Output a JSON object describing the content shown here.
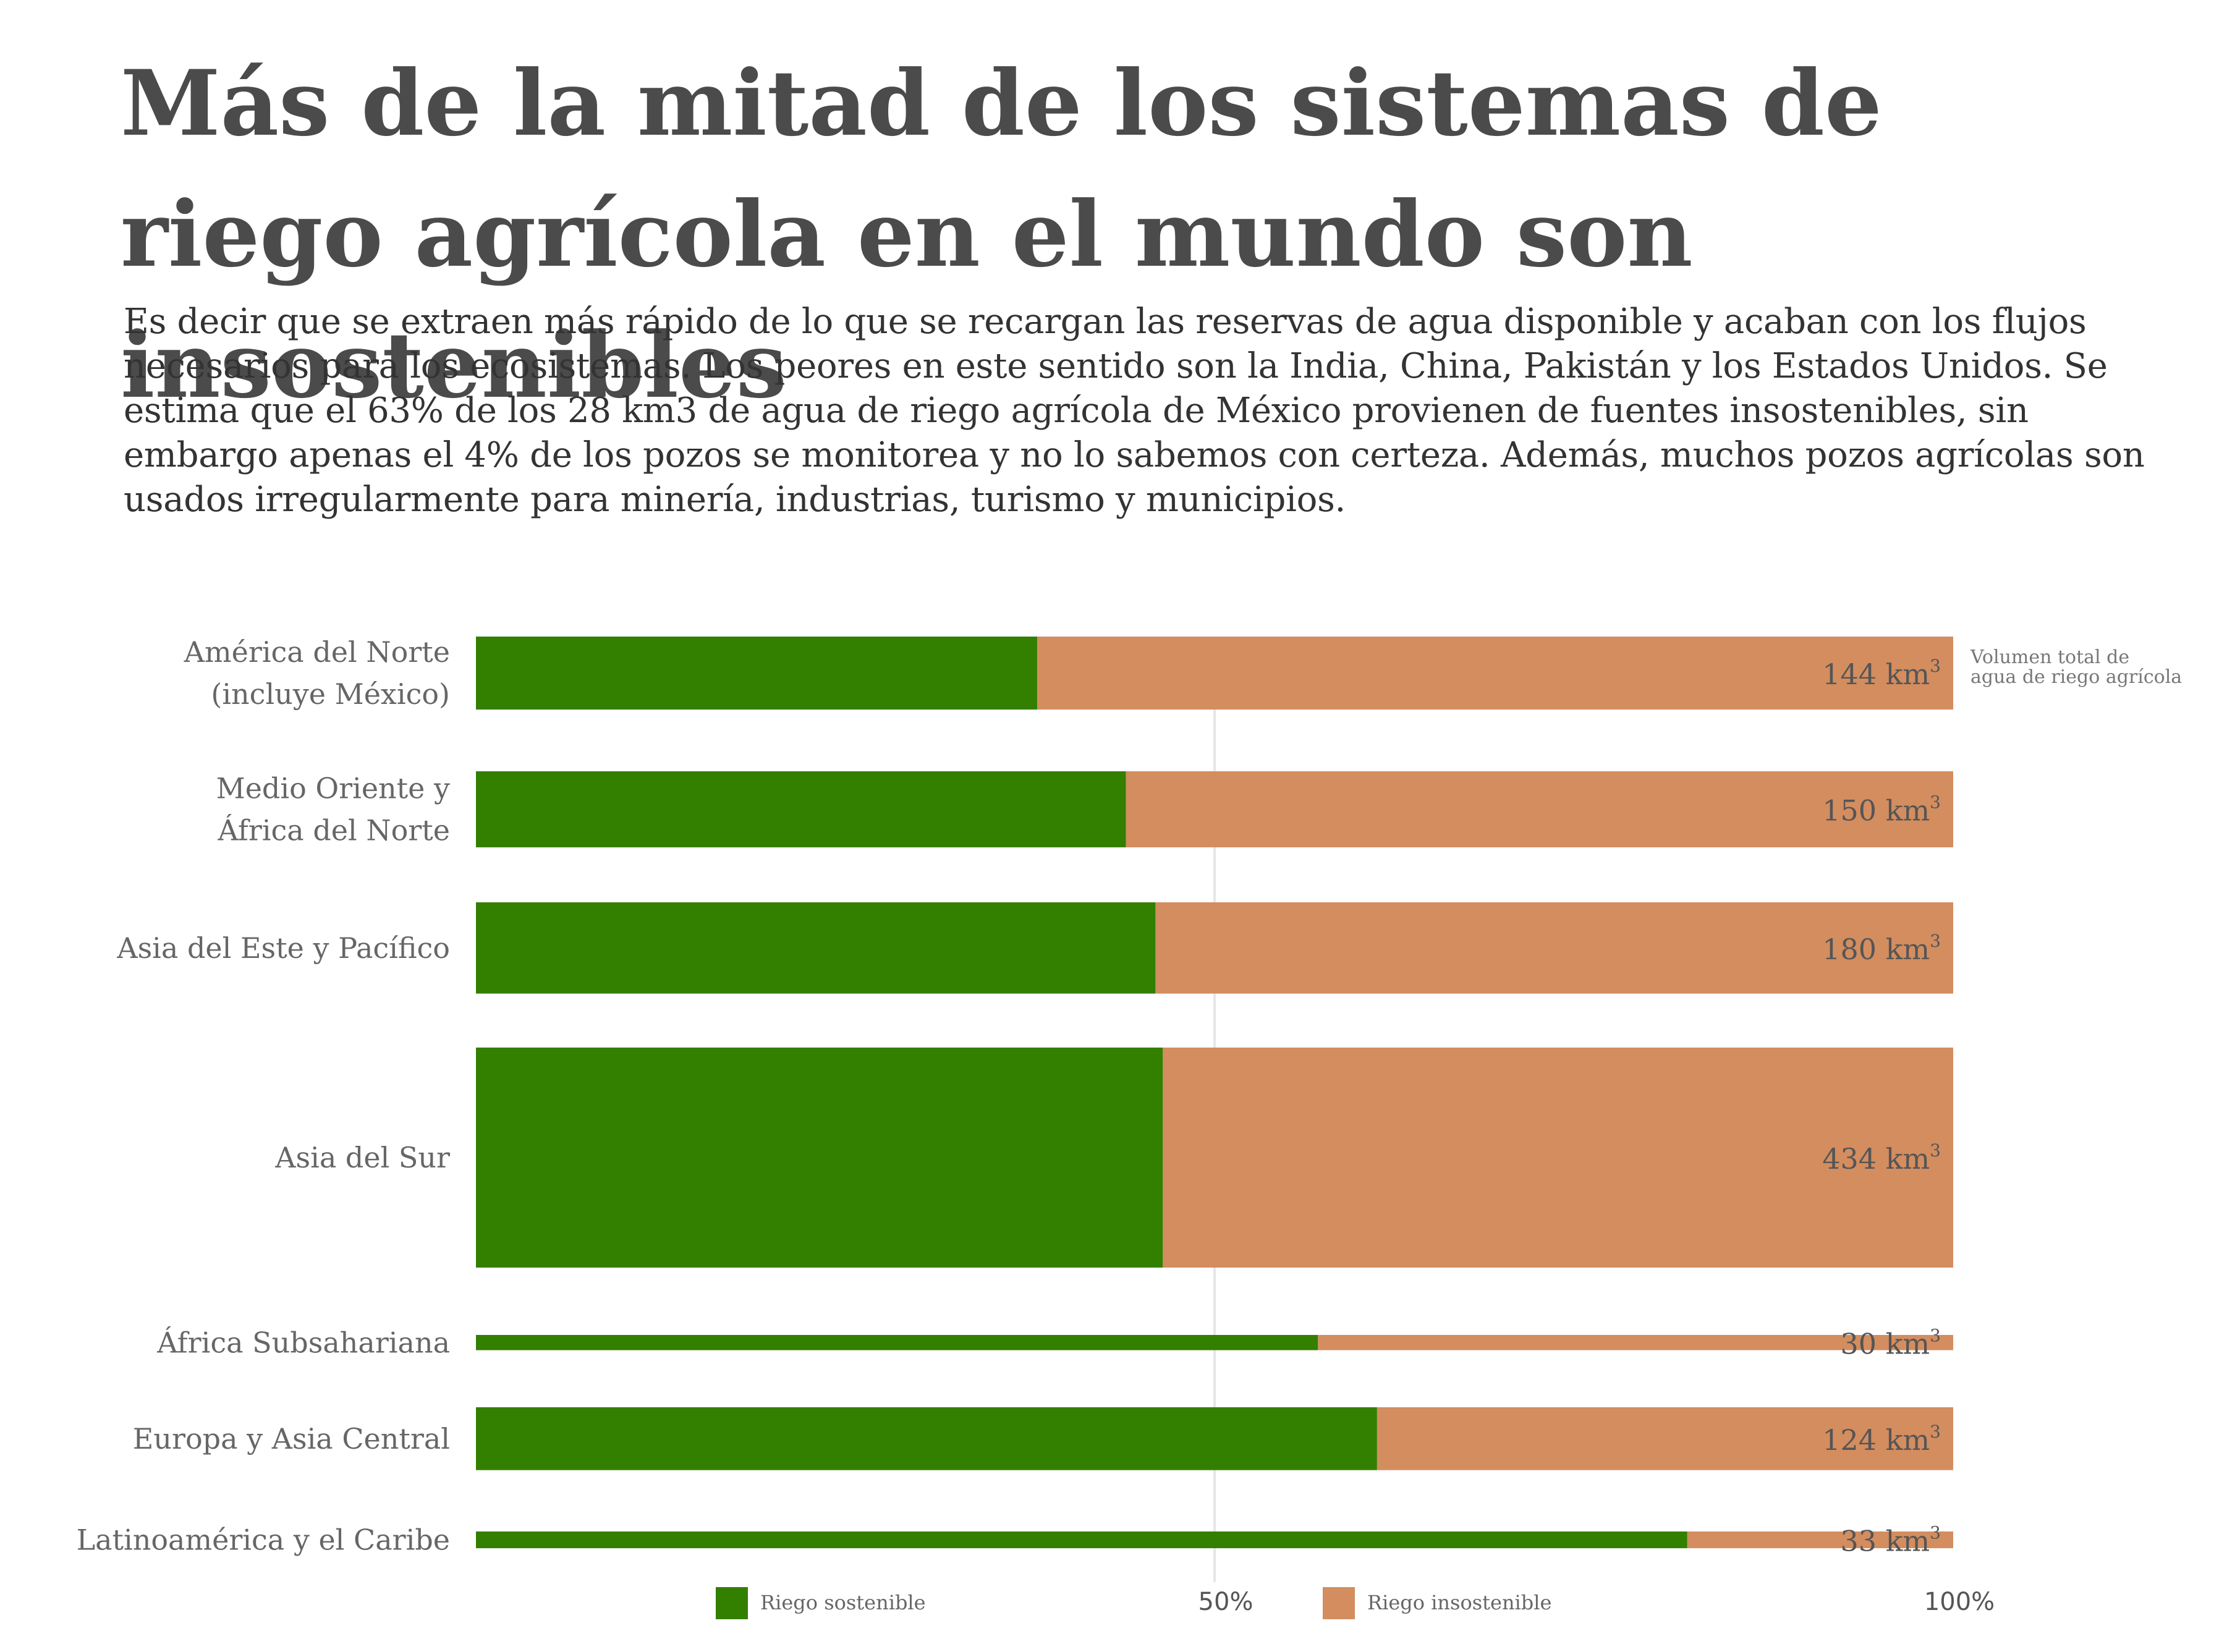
{
  "header": {
    "title": "Más de la mitad de los sistemas de riego agrícola en el mundo son insostenibles",
    "subtitle": "Es decir que se extraen más rápido de lo que se recargan las reservas de agua disponible y acaban con los flujos necesarios para los ecosistemas. Los peores en este sentido son la India, China, Pakistán y los Estados Unidos. Se estima que el 63% de los 28 km3 de agua de riego agrícola de México provienen de fuentes insostenibles, sin embargo apenas el 4% de los pozos se monitorea y no lo sabemos con certeza. Además, muchos pozos agrícolas son usados irregularmente para minería, industrias, turismo y municipios."
  },
  "colors": {
    "sustainable": "#337f00",
    "unsustainable": "#d38d5f",
    "gridline": "#e6e6e6"
  },
  "chart_data": {
    "type": "bar",
    "orientation": "horizontal",
    "stacked": true,
    "normalized": true,
    "bar_height_encodes": "total volume",
    "categories": [
      [
        "América del Norte",
        "(incluye México)"
      ],
      [
        "Medio Oriente y",
        "África del Norte"
      ],
      [
        "Asia del Este y Pacífico"
      ],
      [
        "Asia del Sur"
      ],
      [
        "África Subsahariana"
      ],
      [
        "Europa y Asia Central"
      ],
      [
        "Latinoamérica y el Caribe"
      ]
    ],
    "series": [
      {
        "name": "Riego sostenible",
        "values": [
          38,
          44,
          46,
          46.5,
          57,
          61,
          82
        ]
      },
      {
        "name": "Riego insostenible",
        "values": [
          62,
          56,
          54,
          53.5,
          43,
          39,
          18
        ]
      }
    ],
    "totals": [
      144,
      150,
      180,
      434,
      30,
      124,
      33
    ],
    "total_unit": "km",
    "total_unit_sup": "3",
    "totals_note": [
      "Volumen total de",
      "agua de riego agrícola"
    ],
    "x_ticks": [
      "50%",
      "100%"
    ],
    "xlim": [
      0,
      100
    ],
    "legend_position": "bottom"
  }
}
